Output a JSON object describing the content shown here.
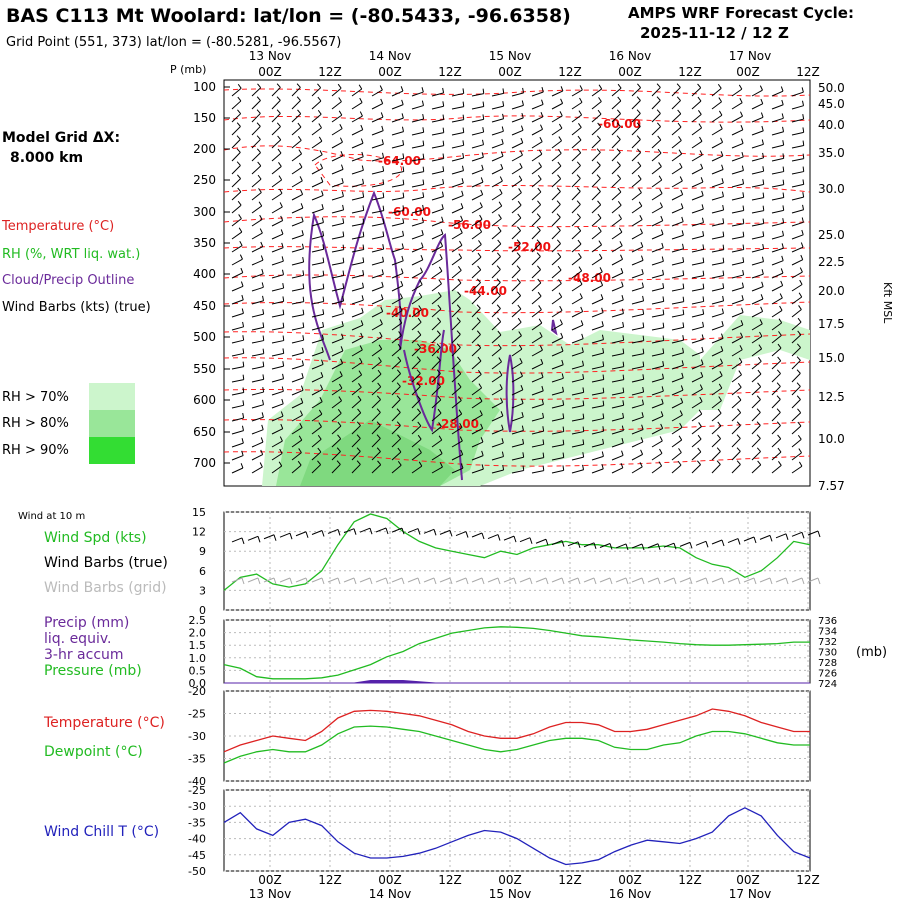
{
  "header": {
    "title": "BAS C113 Mt Woolard:  lat/lon = (-80.5433, -96.6358)",
    "grid_point": "Grid Point (551, 373) lat/lon = (-80.5281, -96.5567)",
    "cycle_label": "AMPS WRF Forecast Cycle:",
    "cycle_value": "2025-11-12 / 12  Z"
  },
  "sidebar": {
    "model_grid_label": "Model Grid ΔX:",
    "model_grid_value": "8.000 km",
    "legend_temperature": "Temperature (°C)",
    "legend_rh": "RH (%, WRT liq. wat.)",
    "legend_cloud": "Cloud/Precip Outline",
    "legend_wind": "Wind Barbs (kts) (true)",
    "rh_levels": [
      "RH > 70%",
      "RH > 80%",
      "RH > 90%"
    ],
    "rh_colors": [
      "#ccf5cc",
      "#99e699",
      "#33dd33"
    ],
    "wind_10m_title": "Wind at 10 m",
    "wind_spd_label": "Wind Spd (kts)",
    "wind_barbs_true": "Wind Barbs (true)",
    "wind_barbs_grid": "Wind Barbs (grid)",
    "precip_lines": [
      "Precip (mm)",
      "liq. equiv.",
      "3-hr accum"
    ],
    "pressure_label": "Pressure (mb)",
    "pressure_unit": "(mb)",
    "temp_label": "Temperature (°C)",
    "dew_label": "Dewpoint (°C)",
    "windchill_label": "Wind Chill T (°C)"
  },
  "time_axis": {
    "top_labels": [
      "13 Nov",
      "14 Nov",
      "15 Nov",
      "16 Nov",
      "17 Nov"
    ],
    "ticks": [
      "00Z",
      "12Z",
      "00Z",
      "12Z",
      "00Z",
      "12Z",
      "00Z",
      "12Z",
      "00Z",
      "12Z"
    ],
    "bottom_labels": [
      "13 Nov",
      "14 Nov",
      "15 Nov",
      "16 Nov",
      "17 Nov"
    ]
  },
  "chart_data": [
    {
      "type": "line",
      "name": "cross-section",
      "p_label": "P (mb)",
      "right_label": "Kft MSL",
      "p_ticks": [
        "100",
        "150",
        "200",
        "250",
        "300",
        "350",
        "400",
        "450",
        "500",
        "550",
        "600",
        "650",
        "700"
      ],
      "height_ticks": [
        "50.0",
        "45.0",
        "40.0",
        "35.0",
        "30.0",
        "25.0",
        "22.5",
        "20.0",
        "17.5",
        "15.0",
        "12.5",
        "10.0",
        "7.57"
      ],
      "isotherm_labels": [
        "-60.00",
        "-64.00",
        "-60.00",
        "-56.00",
        "-52.00",
        "-48.00",
        "-44.00",
        "-40.00",
        "-36.00",
        "-32.00",
        "-28.00"
      ]
    },
    {
      "type": "line",
      "name": "wind 10 m",
      "y_ticks": [
        "15",
        "12",
        "9",
        "6",
        "3",
        "0"
      ],
      "ylim": [
        0,
        15
      ],
      "x": [
        0,
        3,
        6,
        9,
        12,
        15,
        18,
        21,
        24,
        27,
        30,
        33,
        36,
        39,
        42,
        45,
        48,
        51,
        54,
        57,
        60,
        63,
        66,
        69,
        72,
        75,
        78,
        81,
        84,
        87,
        90,
        93,
        96,
        99,
        102,
        105,
        108
      ],
      "series": [
        {
          "name": "Wind Spd (kts)",
          "color": "#22bb22",
          "values": [
            3,
            5,
            5.5,
            4,
            3.5,
            4,
            6,
            10,
            13.5,
            14.7,
            14,
            12,
            10.5,
            9.5,
            9,
            8.5,
            8,
            9,
            8.5,
            9.5,
            10,
            10.5,
            10,
            10,
            9.5,
            9.5,
            9.5,
            9.8,
            9.5,
            8,
            7,
            6.5,
            5,
            6,
            8,
            10.5,
            10
          ]
        }
      ]
    },
    {
      "type": "line",
      "name": "precip and pressure",
      "left_ticks": [
        "2.5",
        "2.0",
        "1.5",
        "1.0",
        "0.5",
        "0.0"
      ],
      "right_ticks": [
        "736",
        "734",
        "732",
        "730",
        "728",
        "726",
        "724"
      ],
      "ylim_left": [
        0,
        2.5
      ],
      "ylim_right": [
        724,
        736
      ],
      "x": [
        0,
        3,
        6,
        9,
        12,
        15,
        18,
        21,
        24,
        27,
        30,
        33,
        36,
        39,
        42,
        45,
        48,
        51,
        54,
        57,
        60,
        63,
        66,
        69,
        72,
        75,
        78,
        81,
        84,
        87,
        90,
        93,
        96,
        99,
        102,
        105,
        108
      ],
      "series": [
        {
          "name": "Pressure (mb)",
          "color": "#22bb22",
          "values": [
            727.5,
            726.8,
            725.2,
            724.8,
            724.8,
            724.8,
            725.0,
            725.5,
            726.5,
            727.5,
            729,
            730,
            731.5,
            732.5,
            733.5,
            734,
            734.5,
            734.7,
            734.6,
            734.4,
            734,
            733.5,
            733,
            732.8,
            732.5,
            732.2,
            732,
            731.8,
            731.5,
            731.3,
            731.2,
            731.2,
            731.3,
            731.4,
            731.5,
            731.8,
            731.8
          ]
        },
        {
          "name": "Precip (mm)",
          "color": "#5522aa",
          "values": [
            0,
            0,
            0,
            0,
            0,
            0,
            0,
            0,
            0,
            0.1,
            0.1,
            0.1,
            0.05,
            0,
            0,
            0,
            0,
            0,
            0,
            0,
            0,
            0,
            0,
            0,
            0,
            0,
            0,
            0,
            0,
            0,
            0,
            0,
            0,
            0,
            0,
            0,
            0
          ]
        }
      ]
    },
    {
      "type": "line",
      "name": "temperature and dewpoint",
      "y_ticks": [
        "-20",
        "-25",
        "-30",
        "-35",
        "-40"
      ],
      "ylim": [
        -40,
        -20
      ],
      "x": [
        0,
        3,
        6,
        9,
        12,
        15,
        18,
        21,
        24,
        27,
        30,
        33,
        36,
        39,
        42,
        45,
        48,
        51,
        54,
        57,
        60,
        63,
        66,
        69,
        72,
        75,
        78,
        81,
        84,
        87,
        90,
        93,
        96,
        99,
        102,
        105,
        108
      ],
      "series": [
        {
          "name": "Temperature (°C)",
          "color": "#dd2222",
          "values": [
            -33.5,
            -32,
            -31,
            -30,
            -30.5,
            -31,
            -29,
            -26,
            -24.5,
            -24.3,
            -24.5,
            -25,
            -25.5,
            -26.5,
            -27.5,
            -29,
            -30,
            -30.5,
            -30.5,
            -29.5,
            -28,
            -27,
            -27,
            -27.5,
            -29,
            -29,
            -28.5,
            -27.5,
            -26.5,
            -25.5,
            -24,
            -24.5,
            -25.5,
            -27,
            -28,
            -29,
            -29
          ]
        },
        {
          "name": "Dewpoint (°C)",
          "color": "#22bb22",
          "values": [
            -36,
            -34.5,
            -33.5,
            -33,
            -33.5,
            -33.5,
            -32,
            -29.5,
            -28,
            -27.8,
            -28,
            -28.5,
            -29,
            -30,
            -31,
            -32,
            -33,
            -33.5,
            -33,
            -32,
            -31,
            -30.5,
            -30.5,
            -31,
            -32.5,
            -33,
            -33,
            -32,
            -31.5,
            -30,
            -29,
            -29,
            -29.5,
            -30.5,
            -31.5,
            -32,
            -32
          ]
        }
      ]
    },
    {
      "type": "line",
      "name": "wind chill",
      "y_ticks": [
        "-25",
        "-30",
        "-35",
        "-40",
        "-45",
        "-50"
      ],
      "ylim": [
        -50,
        -25
      ],
      "x": [
        0,
        3,
        6,
        9,
        12,
        15,
        18,
        21,
        24,
        27,
        30,
        33,
        36,
        39,
        42,
        45,
        48,
        51,
        54,
        57,
        60,
        63,
        66,
        69,
        72,
        75,
        78,
        81,
        84,
        87,
        90,
        93,
        96,
        99,
        102,
        105,
        108
      ],
      "series": [
        {
          "name": "Wind Chill T (°C)",
          "color": "#2222bb",
          "values": [
            -35,
            -32,
            -37,
            -39,
            -35,
            -34,
            -36,
            -41,
            -44.5,
            -46,
            -46,
            -45.5,
            -44.5,
            -43,
            -41,
            -39,
            -37.5,
            -38,
            -40,
            -43,
            -46,
            -48,
            -47.5,
            -46.5,
            -44,
            -42,
            -40.5,
            -41,
            -41.5,
            -40,
            -38,
            -33,
            -30.5,
            -33,
            -39,
            -44,
            -46
          ]
        }
      ]
    }
  ]
}
